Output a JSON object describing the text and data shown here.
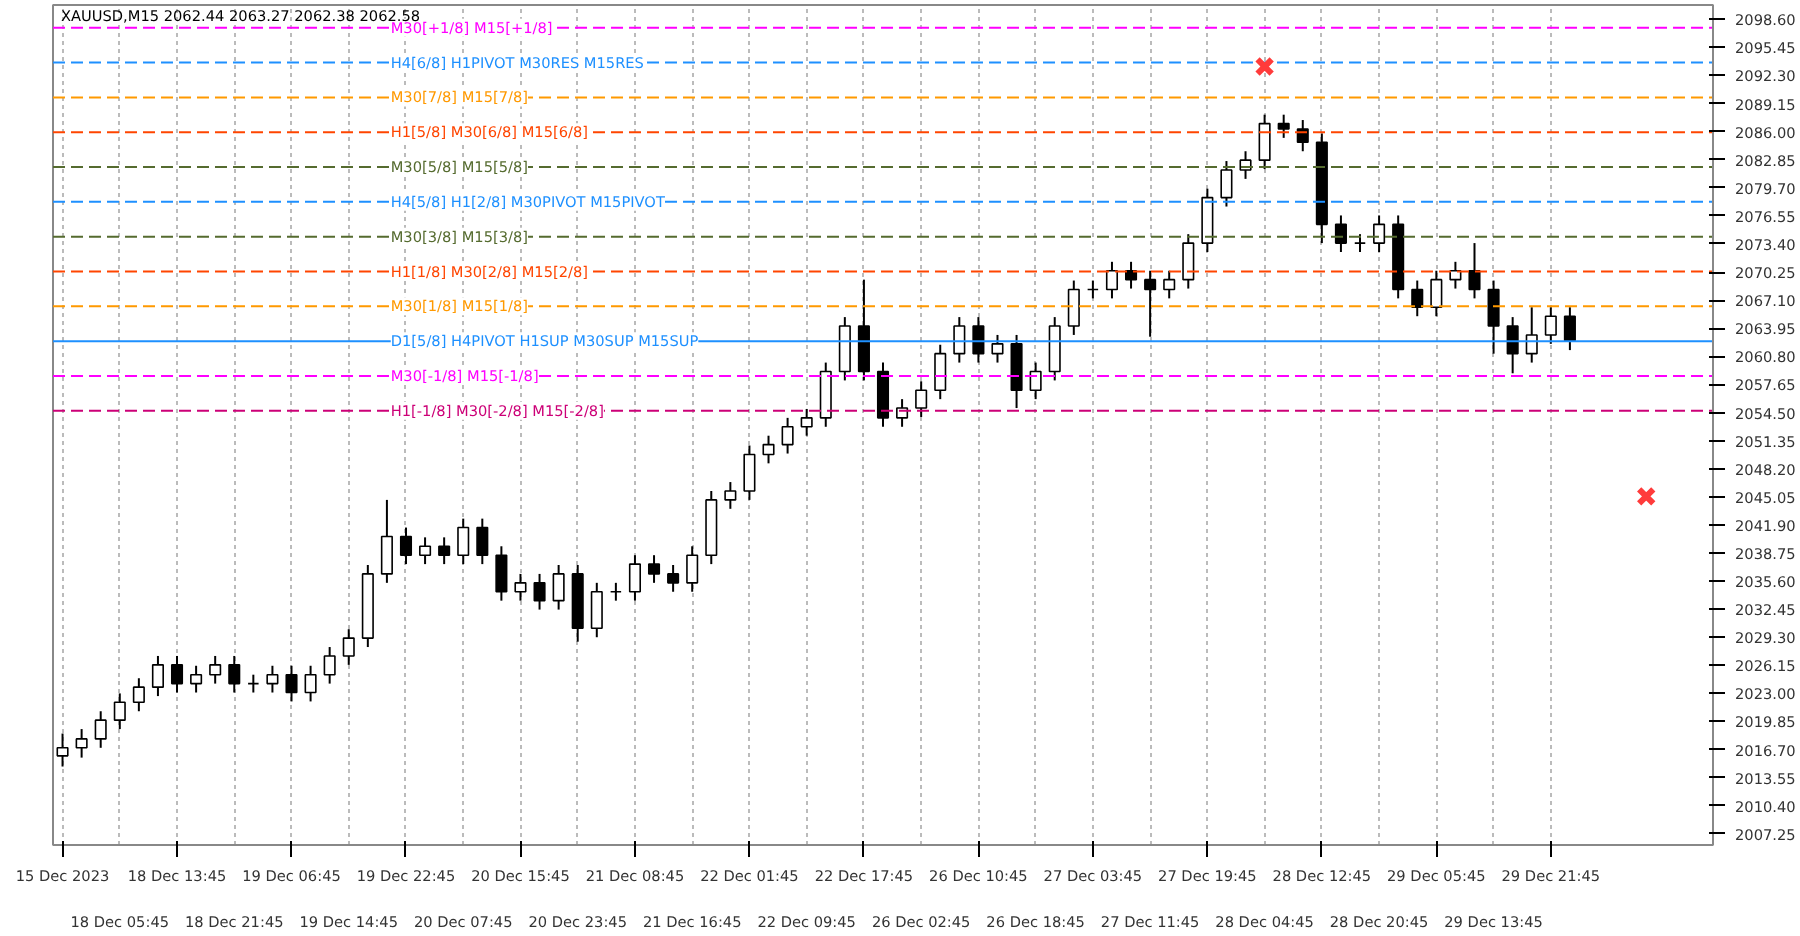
{
  "chart_data": {
    "type": "candlestick",
    "title": "XAUUSD,M15  2062.44 2063.27 2062.38 2062.58",
    "categories": [
      "15 Dec 2023",
      null,
      null,
      "18 Dec 05:45",
      null,
      null,
      "18 Dec 13:45",
      null,
      null,
      "18 Dec 21:45",
      null,
      null,
      "19 Dec 06:45",
      null,
      null,
      "19 Dec 14:45",
      null,
      null,
      "19 Dec 22:45",
      null,
      null,
      "20 Dec 07:45",
      null,
      null,
      "20 Dec 15:45",
      null,
      null,
      "20 Dec 23:45",
      null,
      null,
      "21 Dec 08:45",
      null,
      null,
      "21 Dec 16:45",
      null,
      null,
      "22 Dec 01:45",
      null,
      null,
      "22 Dec 09:45",
      null,
      null,
      "22 Dec 17:45",
      null,
      null,
      "26 Dec 02:45",
      null,
      null,
      "26 Dec 10:45",
      null,
      null,
      "26 Dec 18:45",
      null,
      null,
      "27 Dec 03:45",
      null,
      null,
      "27 Dec 11:45",
      null,
      null,
      "27 Dec 19:45",
      null,
      null,
      "28 Dec 04:45",
      null,
      null,
      "28 Dec 12:45",
      null,
      null,
      "28 Dec 20:45",
      null,
      null,
      "29 Dec 05:45",
      null,
      null,
      "29 Dec 13:45",
      null,
      null,
      "29 Dec 21:45",
      null,
      null,
      null,
      null,
      null,
      null,
      null
    ],
    "ohlc": [
      [
        2016.0,
        2018.5,
        2014.8,
        2016.9
      ],
      [
        2016.9,
        2019.0,
        2015.8,
        2017.9
      ],
      [
        2017.9,
        2021.0,
        2016.9,
        2020.0
      ],
      [
        2020.0,
        2023.0,
        2019.0,
        2022.0
      ],
      [
        2022.0,
        2024.7,
        2021.0,
        2023.7
      ],
      [
        2023.7,
        2027.2,
        2022.7,
        2026.2
      ],
      [
        2026.2,
        2027.2,
        2023.1,
        2024.1
      ],
      [
        2024.1,
        2026.1,
        2023.1,
        2025.1
      ],
      [
        2025.1,
        2027.2,
        2024.1,
        2026.2
      ],
      [
        2026.2,
        2027.2,
        2023.1,
        2024.1
      ],
      [
        2024.1,
        2025.1,
        2023.1,
        2024.1
      ],
      [
        2024.1,
        2026.1,
        2023.1,
        2025.1
      ],
      [
        2025.1,
        2026.1,
        2022.1,
        2023.1
      ],
      [
        2023.1,
        2026.1,
        2022.1,
        2025.1
      ],
      [
        2025.1,
        2028.2,
        2024.1,
        2027.2
      ],
      [
        2027.2,
        2030.2,
        2026.2,
        2029.2
      ],
      [
        2029.2,
        2037.4,
        2028.2,
        2036.4
      ],
      [
        2036.4,
        2044.7,
        2035.4,
        2040.6
      ],
      [
        2040.6,
        2041.6,
        2037.5,
        2038.5
      ],
      [
        2038.5,
        2040.5,
        2037.5,
        2039.5
      ],
      [
        2039.5,
        2040.5,
        2037.5,
        2038.5
      ],
      [
        2038.5,
        2042.6,
        2037.5,
        2041.6
      ],
      [
        2041.6,
        2042.6,
        2037.5,
        2038.5
      ],
      [
        2038.5,
        2039.5,
        2033.4,
        2034.4
      ],
      [
        2034.4,
        2036.4,
        2033.4,
        2035.4
      ],
      [
        2035.4,
        2036.4,
        2032.4,
        2033.4
      ],
      [
        2033.4,
        2037.4,
        2032.4,
        2036.4
      ],
      [
        2036.4,
        2037.4,
        2028.8,
        2030.3
      ],
      [
        2030.3,
        2035.4,
        2029.3,
        2034.4
      ],
      [
        2034.4,
        2035.4,
        2033.4,
        2034.4
      ],
      [
        2034.4,
        2038.5,
        2033.4,
        2037.5
      ],
      [
        2037.5,
        2038.5,
        2035.4,
        2036.4
      ],
      [
        2036.4,
        2037.4,
        2034.4,
        2035.4
      ],
      [
        2035.4,
        2039.5,
        2034.4,
        2038.5
      ],
      [
        2038.5,
        2045.7,
        2037.5,
        2044.7
      ],
      [
        2044.7,
        2046.7,
        2043.7,
        2045.7
      ],
      [
        2045.7,
        2050.8,
        2044.7,
        2049.8
      ],
      [
        2049.8,
        2051.9,
        2048.8,
        2050.9
      ],
      [
        2050.9,
        2053.9,
        2049.9,
        2052.9
      ],
      [
        2052.9,
        2054.9,
        2051.9,
        2053.9
      ],
      [
        2053.9,
        2060.1,
        2052.9,
        2059.1
      ],
      [
        2059.1,
        2065.2,
        2058.1,
        2064.2
      ],
      [
        2064.2,
        2069.4,
        2058.1,
        2059.1
      ],
      [
        2059.1,
        2060.1,
        2052.9,
        2053.9
      ],
      [
        2053.9,
        2056.0,
        2052.9,
        2055.0
      ],
      [
        2055.0,
        2058.0,
        2054.0,
        2057.0
      ],
      [
        2057.0,
        2062.1,
        2056.0,
        2061.1
      ],
      [
        2061.1,
        2065.2,
        2060.1,
        2064.2
      ],
      [
        2064.2,
        2065.2,
        2060.1,
        2061.1
      ],
      [
        2061.1,
        2063.2,
        2060.1,
        2062.2
      ],
      [
        2062.2,
        2063.2,
        2055.0,
        2057.0
      ],
      [
        2057.0,
        2060.1,
        2056.0,
        2059.1
      ],
      [
        2059.1,
        2065.2,
        2058.1,
        2064.2
      ],
      [
        2064.2,
        2069.3,
        2063.2,
        2068.3
      ],
      [
        2068.3,
        2069.3,
        2067.3,
        2068.3
      ],
      [
        2068.3,
        2071.4,
        2067.3,
        2070.4
      ],
      [
        2070.4,
        2071.4,
        2068.4,
        2069.4
      ],
      [
        2069.4,
        2070.4,
        2063.0,
        2068.3
      ],
      [
        2068.3,
        2070.4,
        2067.3,
        2069.4
      ],
      [
        2069.4,
        2074.5,
        2068.4,
        2073.5
      ],
      [
        2073.5,
        2079.6,
        2072.5,
        2078.6
      ],
      [
        2078.6,
        2082.7,
        2077.6,
        2081.7
      ],
      [
        2081.7,
        2083.8,
        2080.7,
        2082.8
      ],
      [
        2082.8,
        2087.9,
        2081.8,
        2086.9
      ],
      [
        2086.9,
        2087.9,
        2085.3,
        2086.3
      ],
      [
        2086.3,
        2087.3,
        2083.8,
        2084.8
      ],
      [
        2084.8,
        2085.8,
        2073.5,
        2075.6
      ],
      [
        2075.6,
        2076.6,
        2072.5,
        2073.5
      ],
      [
        2073.5,
        2074.5,
        2072.5,
        2073.5
      ],
      [
        2073.5,
        2076.6,
        2072.5,
        2075.6
      ],
      [
        2075.6,
        2076.6,
        2067.3,
        2068.3
      ],
      [
        2068.3,
        2069.3,
        2065.3,
        2066.3
      ],
      [
        2066.3,
        2070.4,
        2065.3,
        2069.4
      ],
      [
        2069.4,
        2071.4,
        2068.4,
        2070.4
      ],
      [
        2070.4,
        2073.5,
        2067.3,
        2068.3
      ],
      [
        2068.3,
        2069.3,
        2061.1,
        2064.2
      ],
      [
        2064.2,
        2065.2,
        2058.9,
        2061.1
      ],
      [
        2061.1,
        2066.3,
        2060.1,
        2063.2
      ],
      [
        2063.2,
        2066.3,
        2062.2,
        2065.3
      ],
      [
        2065.3,
        2066.3,
        2061.5,
        2062.58
      ],
      null,
      null,
      null,
      null,
      null,
      null
    ],
    "color": "#000000",
    "series": [
      {
        "type": "scatter",
        "color": "#ff3b3b",
        "marker": "cross",
        "values": [
          null,
          null,
          null,
          null,
          null,
          null,
          null,
          null,
          null,
          null,
          null,
          null,
          null,
          null,
          null,
          null,
          null,
          null,
          null,
          null,
          null,
          null,
          null,
          null,
          null,
          null,
          null,
          null,
          null,
          null,
          null,
          null,
          null,
          null,
          null,
          null,
          null,
          null,
          null,
          null,
          null,
          null,
          null,
          null,
          null,
          null,
          null,
          null,
          null,
          null,
          null,
          null,
          null,
          null,
          null,
          null,
          null,
          null,
          null,
          null,
          null,
          null,
          null,
          2093.3,
          null,
          null,
          null,
          null,
          null,
          null,
          null,
          null,
          null,
          null,
          null,
          null,
          null,
          null,
          null,
          null,
          null,
          null,
          null,
          2045.1,
          null,
          null
        ]
      }
    ],
    "ylim": [
      2006.0,
      2100.2
    ],
    "yticks": [
      {
        "value": 2098.6,
        "label": "2098.60"
      },
      {
        "value": 2095.45,
        "label": "2095.45"
      },
      {
        "value": 2092.3,
        "label": "2092.30"
      },
      {
        "value": 2089.15,
        "label": "2089.15"
      },
      {
        "value": 2086.0,
        "label": "2086.00"
      },
      {
        "value": 2082.85,
        "label": "2082.85"
      },
      {
        "value": 2079.7,
        "label": "2079.70"
      },
      {
        "value": 2076.55,
        "label": "2076.55"
      },
      {
        "value": 2073.4,
        "label": "2073.40"
      },
      {
        "value": 2070.25,
        "label": "2070.25"
      },
      {
        "value": 2067.1,
        "label": "2067.10"
      },
      {
        "value": 2063.95,
        "label": "2063.95"
      },
      {
        "value": 2060.8,
        "label": "2060.80"
      },
      {
        "value": 2057.65,
        "label": "2057.65"
      },
      {
        "value": 2054.5,
        "label": "2054.50"
      },
      {
        "value": 2051.35,
        "label": "2051.35"
      },
      {
        "value": 2048.2,
        "label": "2048.20"
      },
      {
        "value": 2045.05,
        "label": "2045.05"
      },
      {
        "value": 2041.9,
        "label": "2041.90"
      },
      {
        "value": 2038.75,
        "label": "2038.75"
      },
      {
        "value": 2035.6,
        "label": "2035.60"
      },
      {
        "value": 2032.45,
        "label": "2032.45"
      },
      {
        "value": 2029.3,
        "label": "2029.30"
      },
      {
        "value": 2026.15,
        "label": "2026.15"
      },
      {
        "value": 2023.0,
        "label": "2023.00"
      },
      {
        "value": 2019.85,
        "label": "2019.85"
      },
      {
        "value": 2016.7,
        "label": "2016.70"
      },
      {
        "value": 2013.55,
        "label": "2013.55"
      },
      {
        "value": 2010.4,
        "label": "2010.40"
      },
      {
        "value": 2007.25,
        "label": "2007.25"
      }
    ],
    "grid": "x",
    "ref_lines": [
      {
        "axis": "y",
        "value": 2097.66,
        "label": "M30[+1/8] M15[+1/8]",
        "color": "#ff00ff",
        "line_style": "dashed"
      },
      {
        "axis": "y",
        "value": 2093.75,
        "label": "H4[6/8] H1PIVOT M30RES M15RES",
        "color": "#1e90ff",
        "line_style": "dashed"
      },
      {
        "axis": "y",
        "value": 2089.84,
        "label": "M30[7/8] M15[7/8]",
        "color": "#ff9900",
        "line_style": "dashed"
      },
      {
        "axis": "y",
        "value": 2085.94,
        "label": "H1[5/8] M30[6/8] M15[6/8]",
        "color": "#ff4500",
        "line_style": "dashed"
      },
      {
        "axis": "y",
        "value": 2082.03,
        "label": "M30[5/8] M15[5/8]",
        "color": "#556b2f",
        "line_style": "dashed"
      },
      {
        "axis": "y",
        "value": 2078.13,
        "label": "H4[5/8] H1[2/8] M30PIVOT M15PIVOT",
        "color": "#1e90ff",
        "line_style": "dashed"
      },
      {
        "axis": "y",
        "value": 2074.22,
        "label": "M30[3/8] M15[3/8]",
        "color": "#556b2f",
        "line_style": "dashed"
      },
      {
        "axis": "y",
        "value": 2070.31,
        "label": "H1[1/8] M30[2/8] M15[2/8]",
        "color": "#ff4500",
        "line_style": "dashed"
      },
      {
        "axis": "y",
        "value": 2066.41,
        "label": "M30[1/8] M15[1/8]",
        "color": "#ff9900",
        "line_style": "dashed"
      },
      {
        "axis": "y",
        "value": 2062.5,
        "label": "D1[5/8] H4PIVOT H1SUP M30SUP M15SUP",
        "color": "#1e90ff",
        "line_style": "solid"
      },
      {
        "axis": "y",
        "value": 2058.59,
        "label": "M30[-1/8] M15[-1/8]",
        "color": "#ff00ff",
        "line_style": "dashed"
      },
      {
        "axis": "y",
        "value": 2054.69,
        "label": "H1[-1/8] M30[-2/8] M15[-2/8]",
        "color": "#cc0077",
        "line_style": "dashed"
      }
    ]
  }
}
